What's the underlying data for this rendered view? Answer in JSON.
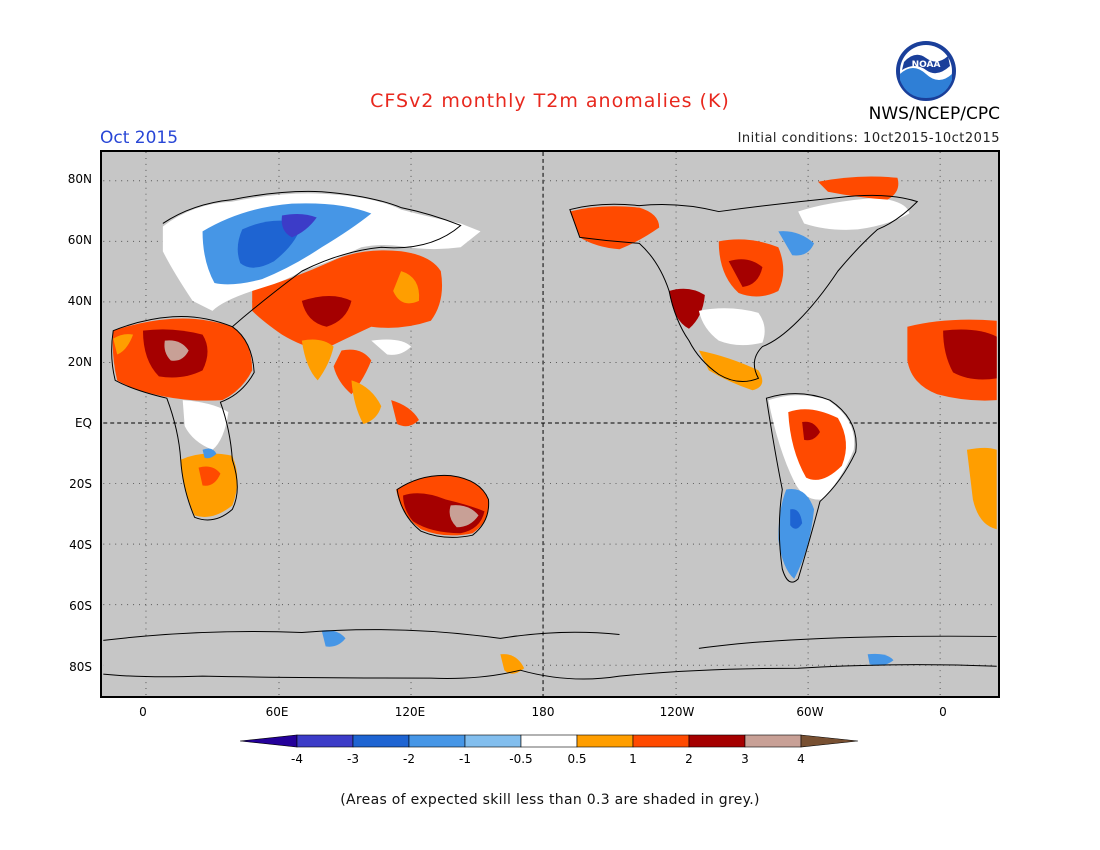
{
  "title": "CFSv2 monthly T2m anomalies (K)",
  "month": "Oct 2015",
  "initial_conditions": "Initial conditions: 10ct2015-10ct2015",
  "agency": "NWS/NCEP/CPC",
  "logo_text": "NOAA",
  "lat_labels": [
    "80N",
    "60N",
    "40N",
    "20N",
    "EQ",
    "20S",
    "40S",
    "60S",
    "80S"
  ],
  "lon_labels": [
    "0",
    "60E",
    "120E",
    "180",
    "120W",
    "60W",
    "0"
  ],
  "colorbar": {
    "labels": [
      "-4",
      "-3",
      "-2",
      "-1",
      "-0.5",
      "0.5",
      "1",
      "2",
      "3",
      "4"
    ],
    "colors": [
      "#24009a",
      "#3c3cc8",
      "#1e64d2",
      "#4696e6",
      "#82beee",
      "#ffffff",
      "#ff9e00",
      "#ff4a00",
      "#a50000",
      "#c8a096",
      "#785032"
    ]
  },
  "skill_shade_color": "#c6c6c6",
  "note": "(Areas of expected skill less than 0.3 are shaded in grey.)"
}
